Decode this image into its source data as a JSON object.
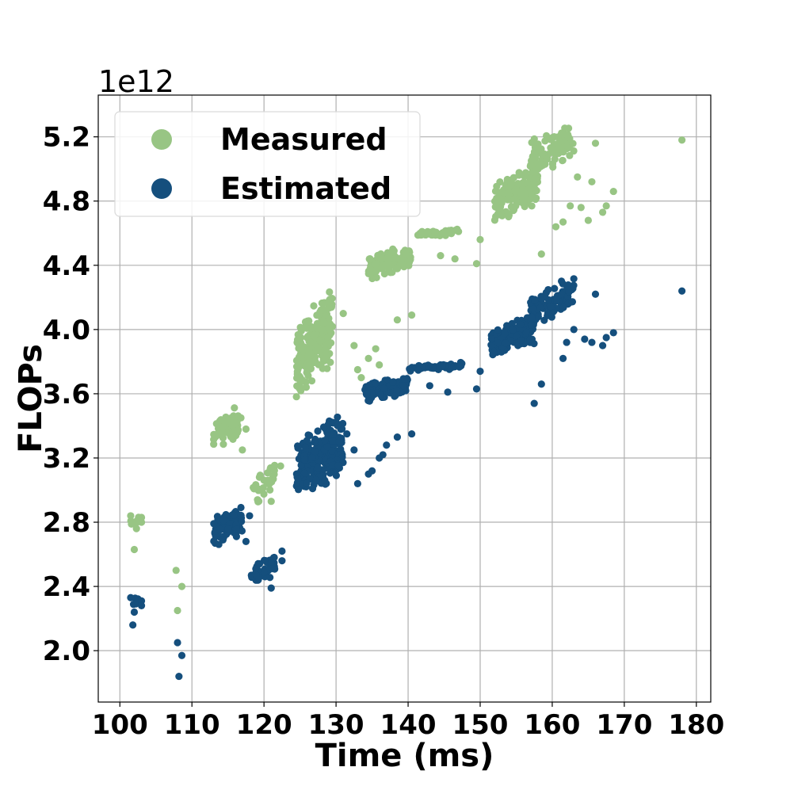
{
  "chart_data": {
    "type": "scatter",
    "title": "",
    "xlabel": "Time (ms)",
    "ylabel": "FLOPs",
    "y_offset_label": "1e12",
    "xlim": [
      97,
      182
    ],
    "ylim": [
      1.68,
      5.46
    ],
    "x_ticks": [
      100,
      110,
      120,
      130,
      140,
      150,
      160,
      170,
      180
    ],
    "x_tick_labels": [
      "100",
      "110",
      "120",
      "130",
      "140",
      "150",
      "160",
      "170",
      "180"
    ],
    "y_ticks": [
      2.0,
      2.4,
      2.8,
      3.2,
      3.6,
      4.0,
      4.4,
      4.8,
      5.2
    ],
    "y_tick_labels": [
      "2.0",
      "2.4",
      "2.8",
      "3.2",
      "3.6",
      "4.0",
      "4.4",
      "4.8",
      "5.2"
    ],
    "grid": true,
    "legend_position": "top-left",
    "series": [
      {
        "name": "Measured",
        "color": "#98c584",
        "clusters": [
          {
            "x": [
              101.3,
              102.6
            ],
            "y": [
              2.73,
              2.86
            ],
            "n": 8
          },
          {
            "x": [
              113.0,
              116.5
            ],
            "y": [
              3.22,
              3.55
            ],
            "n": 70
          },
          {
            "x": [
              118.5,
              121.5
            ],
            "y": [
              2.88,
              3.2
            ],
            "n": 35
          },
          {
            "x": [
              124.5,
              129.5
            ],
            "y": [
              3.56,
              4.27
            ],
            "n": 200
          },
          {
            "x": [
              134.5,
              140.5
            ],
            "y": [
              4.3,
              4.55
            ],
            "n": 110
          },
          {
            "x": [
              141.0,
              147.0
            ],
            "y": [
              4.57,
              4.63
            ],
            "n": 45
          },
          {
            "x": [
              152.0,
              158.0
            ],
            "y": [
              4.65,
              5.05
            ],
            "n": 140
          },
          {
            "x": [
              157.0,
              163.0
            ],
            "y": [
              4.95,
              5.3
            ],
            "n": 90
          }
        ],
        "points": [
          {
            "x": 101.5,
            "y": 2.84
          },
          {
            "x": 102.0,
            "y": 2.63
          },
          {
            "x": 102.3,
            "y": 2.76
          },
          {
            "x": 103.0,
            "y": 2.8
          },
          {
            "x": 103.0,
            "y": 2.83
          },
          {
            "x": 107.8,
            "y": 2.5
          },
          {
            "x": 108.6,
            "y": 2.4
          },
          {
            "x": 108.0,
            "y": 2.25
          },
          {
            "x": 116.8,
            "y": 3.45
          },
          {
            "x": 117.5,
            "y": 3.38
          },
          {
            "x": 117.0,
            "y": 3.25
          },
          {
            "x": 121.0,
            "y": 2.93
          },
          {
            "x": 122.3,
            "y": 3.15
          },
          {
            "x": 131.0,
            "y": 4.1
          },
          {
            "x": 132.5,
            "y": 3.9
          },
          {
            "x": 133.0,
            "y": 3.75
          },
          {
            "x": 133.5,
            "y": 3.7
          },
          {
            "x": 134.5,
            "y": 3.82
          },
          {
            "x": 135.5,
            "y": 3.88
          },
          {
            "x": 136.0,
            "y": 3.78
          },
          {
            "x": 138.5,
            "y": 4.06
          },
          {
            "x": 140.5,
            "y": 4.09
          },
          {
            "x": 144.5,
            "y": 4.46
          },
          {
            "x": 146.5,
            "y": 4.44
          },
          {
            "x": 149.5,
            "y": 4.41
          },
          {
            "x": 150.0,
            "y": 4.56
          },
          {
            "x": 158.5,
            "y": 4.47
          },
          {
            "x": 160.5,
            "y": 4.64
          },
          {
            "x": 161.5,
            "y": 4.67
          },
          {
            "x": 162.5,
            "y": 4.77
          },
          {
            "x": 163.5,
            "y": 4.95
          },
          {
            "x": 164.0,
            "y": 4.76
          },
          {
            "x": 165.0,
            "y": 4.68
          },
          {
            "x": 165.5,
            "y": 4.92
          },
          {
            "x": 166.0,
            "y": 5.16
          },
          {
            "x": 167.0,
            "y": 4.73
          },
          {
            "x": 167.5,
            "y": 4.77
          },
          {
            "x": 168.5,
            "y": 4.86
          },
          {
            "x": 178.0,
            "y": 5.18
          }
        ]
      },
      {
        "name": "Estimated",
        "color": "#154f7d",
        "clusters": [
          {
            "x": [
              101.3,
              102.8
            ],
            "y": [
              2.24,
              2.35
            ],
            "n": 6
          },
          {
            "x": [
              113.0,
              117.0
            ],
            "y": [
              2.64,
              2.91
            ],
            "n": 90
          },
          {
            "x": [
              118.0,
              121.5
            ],
            "y": [
              2.38,
              2.62
            ],
            "n": 40
          },
          {
            "x": [
              124.5,
              131.0
            ],
            "y": [
              2.9,
              3.5
            ],
            "n": 240
          },
          {
            "x": [
              134.0,
              140.0
            ],
            "y": [
              3.54,
              3.72
            ],
            "n": 110
          },
          {
            "x": [
              140.0,
              147.5
            ],
            "y": [
              3.73,
              3.8
            ],
            "n": 50
          },
          {
            "x": [
              151.5,
              157.5
            ],
            "y": [
              3.82,
              4.1
            ],
            "n": 140
          },
          {
            "x": [
              157.0,
              163.0
            ],
            "y": [
              4.0,
              4.35
            ],
            "n": 90
          }
        ],
        "points": [
          {
            "x": 101.5,
            "y": 2.33
          },
          {
            "x": 101.8,
            "y": 2.16
          },
          {
            "x": 102.0,
            "y": 2.24
          },
          {
            "x": 103.0,
            "y": 2.31
          },
          {
            "x": 103.0,
            "y": 2.28
          },
          {
            "x": 108.0,
            "y": 2.05
          },
          {
            "x": 108.2,
            "y": 1.84
          },
          {
            "x": 108.6,
            "y": 1.97
          },
          {
            "x": 117.5,
            "y": 2.68
          },
          {
            "x": 118.0,
            "y": 2.84
          },
          {
            "x": 121.0,
            "y": 2.39
          },
          {
            "x": 122.5,
            "y": 2.62
          },
          {
            "x": 122.5,
            "y": 2.56
          },
          {
            "x": 131.5,
            "y": 3.35
          },
          {
            "x": 132.5,
            "y": 3.25
          },
          {
            "x": 133.0,
            "y": 3.04
          },
          {
            "x": 134.5,
            "y": 3.1
          },
          {
            "x": 135.0,
            "y": 3.12
          },
          {
            "x": 136.0,
            "y": 3.2
          },
          {
            "x": 136.5,
            "y": 3.22
          },
          {
            "x": 137.0,
            "y": 3.28
          },
          {
            "x": 138.5,
            "y": 3.33
          },
          {
            "x": 140.5,
            "y": 3.35
          },
          {
            "x": 143.0,
            "y": 3.65
          },
          {
            "x": 145.5,
            "y": 3.61
          },
          {
            "x": 149.5,
            "y": 3.63
          },
          {
            "x": 150.0,
            "y": 3.74
          },
          {
            "x": 157.5,
            "y": 3.54
          },
          {
            "x": 158.5,
            "y": 3.66
          },
          {
            "x": 161.5,
            "y": 3.82
          },
          {
            "x": 162.0,
            "y": 3.92
          },
          {
            "x": 163.0,
            "y": 4.0
          },
          {
            "x": 164.5,
            "y": 3.94
          },
          {
            "x": 165.5,
            "y": 3.92
          },
          {
            "x": 166.0,
            "y": 4.22
          },
          {
            "x": 167.0,
            "y": 3.9
          },
          {
            "x": 167.5,
            "y": 3.95
          },
          {
            "x": 168.5,
            "y": 3.98
          },
          {
            "x": 178.0,
            "y": 4.24
          }
        ]
      }
    ]
  }
}
